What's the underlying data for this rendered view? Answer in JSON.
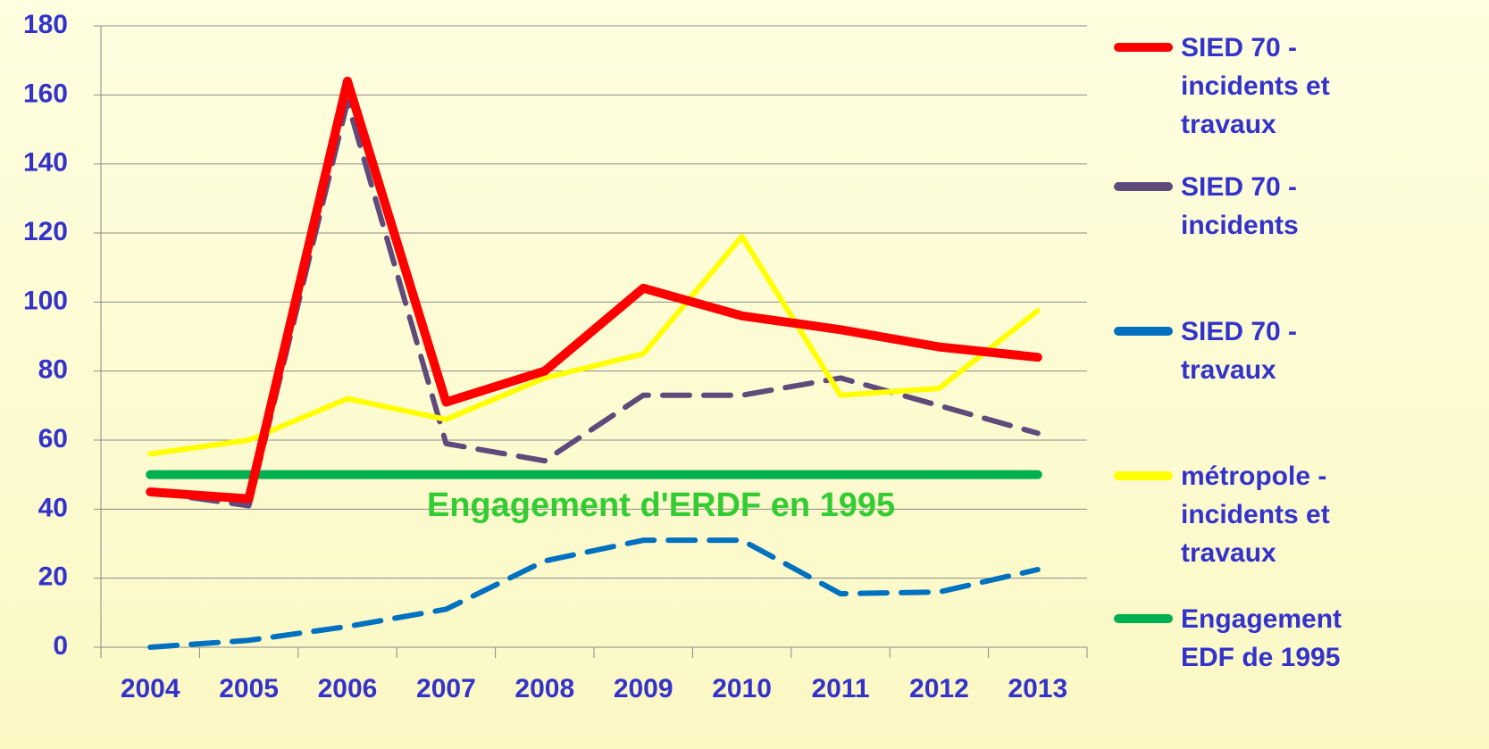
{
  "chart_data": {
    "type": "line",
    "categories": [
      "2004",
      "2005",
      "2006",
      "2007",
      "2008",
      "2009",
      "2010",
      "2011",
      "2012",
      "2013"
    ],
    "series": [
      {
        "name": "SIED 70 - incidents et travaux",
        "color": "#ff0000",
        "style": "solid",
        "values": [
          45,
          43,
          164,
          71,
          80,
          104,
          96,
          92,
          87,
          84
        ]
      },
      {
        "name": "SIED 70 - incidents",
        "color": "#604a7b",
        "style": "dashed",
        "values": [
          45,
          41,
          158,
          59,
          54,
          73,
          73,
          78,
          70,
          62
        ]
      },
      {
        "name": "SIED 70 - travaux",
        "color": "#0070c0",
        "style": "dashed",
        "values": [
          0,
          2,
          6,
          11,
          25,
          31,
          31,
          15.5,
          16,
          22.5
        ]
      },
      {
        "name": "métropole - incidents et travaux",
        "color": "#ffff00",
        "style": "solid",
        "values": [
          56,
          60,
          72,
          66,
          78,
          85,
          119,
          73,
          75,
          97.5
        ]
      },
      {
        "name": "Engagement EDF de 1995",
        "color": "#00b050",
        "style": "solid",
        "values": [
          50,
          50,
          50,
          50,
          50,
          50,
          50,
          50,
          50,
          50
        ]
      }
    ],
    "annotation": "Engagement d'ERDF en 1995",
    "ylim": [
      0,
      180
    ],
    "yticks": [
      0,
      20,
      40,
      60,
      80,
      100,
      120,
      140,
      160,
      180
    ],
    "grid": true,
    "legend": "right"
  }
}
